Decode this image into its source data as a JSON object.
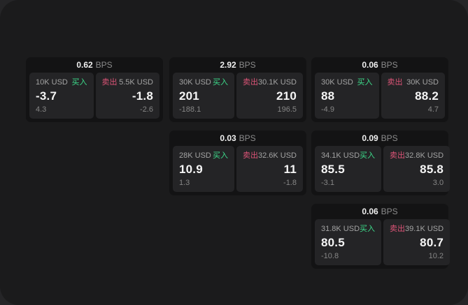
{
  "labels": {
    "bps_unit": "BPS",
    "buy": "买入",
    "sell": "卖出"
  },
  "colors": {
    "buy_green": "#3ddc8b",
    "sell_red": "#dd5477",
    "window_bg": "#1b1b1c",
    "card_bg": "#131314",
    "panel_bg": "#242426"
  },
  "cards": [
    {
      "col": 1,
      "row": 1,
      "bps": "0.62",
      "buy": {
        "amount": "10K USD",
        "price": "-3.7",
        "delta": "4.3"
      },
      "sell": {
        "amount": "5.5K USD",
        "price": "-1.8",
        "delta": "-2.6"
      }
    },
    {
      "col": 2,
      "row": 1,
      "bps": "2.92",
      "buy": {
        "amount": "30K USD",
        "price": "201",
        "delta": "-188.1"
      },
      "sell": {
        "amount": "30.1K USD",
        "price": "210",
        "delta": "196.5"
      }
    },
    {
      "col": 3,
      "row": 1,
      "bps": "0.06",
      "buy": {
        "amount": "30K USD",
        "price": "88",
        "delta": "-4.9"
      },
      "sell": {
        "amount": "30K USD",
        "price": "88.2",
        "delta": "4.7"
      }
    },
    {
      "col": 2,
      "row": 2,
      "bps": "0.03",
      "buy": {
        "amount": "28K USD",
        "price": "10.9",
        "delta": "1.3"
      },
      "sell": {
        "amount": "32.6K USD",
        "price": "11",
        "delta": "-1.8"
      }
    },
    {
      "col": 3,
      "row": 2,
      "bps": "0.09",
      "buy": {
        "amount": "34.1K USD",
        "price": "85.5",
        "delta": "-3.1"
      },
      "sell": {
        "amount": "32.8K USD",
        "price": "85.8",
        "delta": "3.0"
      }
    },
    {
      "col": 3,
      "row": 3,
      "bps": "0.06",
      "buy": {
        "amount": "31.8K USD",
        "price": "80.5",
        "delta": "-10.8"
      },
      "sell": {
        "amount": "39.1K USD",
        "price": "80.7",
        "delta": "10.2"
      }
    }
  ]
}
